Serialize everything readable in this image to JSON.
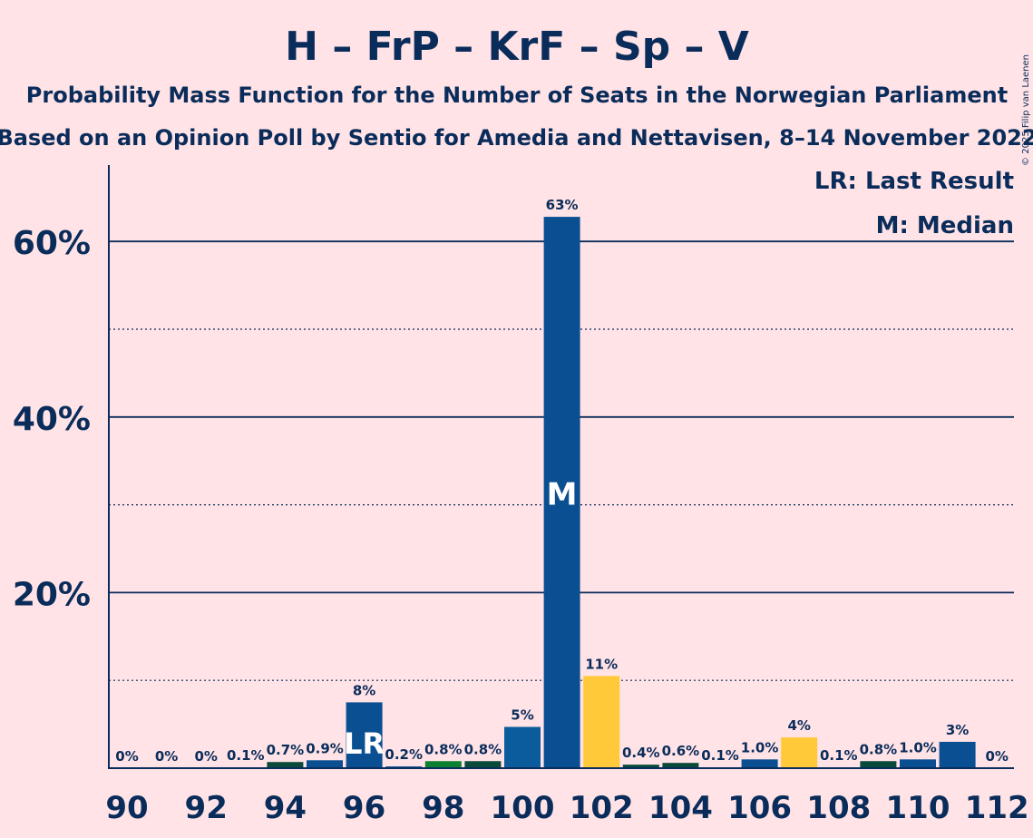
{
  "chart_data": {
    "type": "bar",
    "title": "H – FrP – KrF – Sp – V",
    "subtitle1": "Probability Mass Function for the Number of Seats in the Norwegian Parliament",
    "subtitle2": "Based on an Opinion Poll by Sentio for Amedia and Nettavisen, 8–14 November 2022",
    "copyright": "© 2025 Filip van Laenen",
    "legend": {
      "lr": "LR: Last Result",
      "m": "M: Median"
    },
    "xlabel": "",
    "ylabel": "",
    "ylim": [
      0,
      68
    ],
    "y_ticks": [
      20,
      40,
      60
    ],
    "y_tick_labels": [
      "20%",
      "40%",
      "60%"
    ],
    "y_minor_gridlines": [
      10,
      30,
      50
    ],
    "x_tick_labels": [
      "90",
      "92",
      "94",
      "96",
      "98",
      "100",
      "102",
      "104",
      "106",
      "108",
      "110",
      "112"
    ],
    "categories": [
      90,
      91,
      92,
      93,
      94,
      95,
      96,
      97,
      98,
      99,
      100,
      101,
      102,
      103,
      104,
      105,
      106,
      107,
      108,
      109,
      110,
      111,
      112
    ],
    "values": [
      0,
      0,
      0,
      0.1,
      0.7,
      0.9,
      7.5,
      0.2,
      0.8,
      0.8,
      4.7,
      62.8,
      10.5,
      0.4,
      0.6,
      0.1,
      1.0,
      3.5,
      0.1,
      0.8,
      1.0,
      3.0,
      0
    ],
    "labels": [
      "0%",
      "0%",
      "0%",
      "0.1%",
      "0.7%",
      "0.9%",
      "8%",
      "0.2%",
      "0.8%",
      "0.8%",
      "5%",
      "63%",
      "11%",
      "0.4%",
      "0.6%",
      "0.1%",
      "1.0%",
      "4%",
      "0.1%",
      "0.8%",
      "1.0%",
      "3%",
      "0%"
    ],
    "colors": [
      "#0a4f92",
      "#0a4f92",
      "#0a4f92",
      "#0a4f92",
      "#0a4a3a",
      "#0a4f92",
      "#0a4f92",
      "#0a4f92",
      "#0a8030",
      "#0a4a3a",
      "#0a5c9c",
      "#0a4f92",
      "#ffc93a",
      "#0a4a3a",
      "#0a4a3a",
      "#0a4f92",
      "#0a4f92",
      "#ffc93a",
      "#0a4f92",
      "#0a4a3a",
      "#0a4f92",
      "#0a4f92",
      "#0a4f92"
    ],
    "last_result_seat": 96,
    "last_result_marker": "LR",
    "median_seat": 101,
    "median_marker": "M",
    "grid": true
  }
}
